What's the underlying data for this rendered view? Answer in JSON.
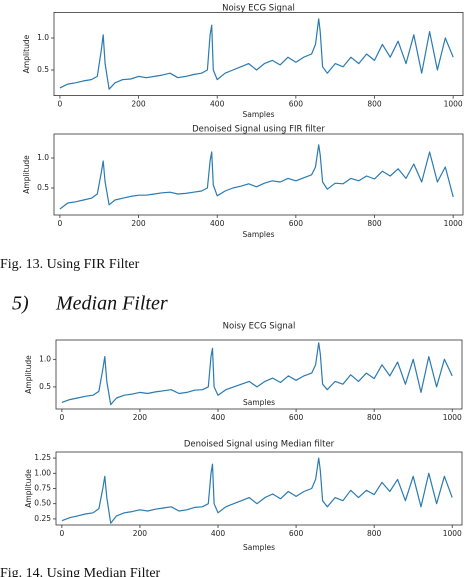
{
  "chart_data": [
    {
      "type": "line",
      "title": "Noisy ECG Signal",
      "xlabel": "Samples",
      "ylabel": "Amplitude",
      "color": "#2b7bb0",
      "x": [
        0,
        20,
        40,
        60,
        80,
        95,
        105,
        110,
        115,
        125,
        140,
        160,
        180,
        200,
        220,
        240,
        260,
        280,
        300,
        320,
        340,
        360,
        375,
        382,
        386,
        390,
        400,
        420,
        440,
        460,
        480,
        500,
        520,
        540,
        560,
        580,
        600,
        620,
        640,
        650,
        658,
        662,
        668,
        680,
        700,
        720,
        740,
        760,
        780,
        800,
        820,
        840,
        860,
        880,
        900,
        920,
        940,
        960,
        980,
        1000
      ],
      "values": [
        0.22,
        0.28,
        0.3,
        0.33,
        0.35,
        0.4,
        0.8,
        1.05,
        0.6,
        0.2,
        0.3,
        0.35,
        0.36,
        0.4,
        0.38,
        0.4,
        0.42,
        0.45,
        0.38,
        0.4,
        0.43,
        0.45,
        0.5,
        1.05,
        1.2,
        0.5,
        0.35,
        0.45,
        0.5,
        0.55,
        0.6,
        0.5,
        0.6,
        0.65,
        0.58,
        0.7,
        0.62,
        0.7,
        0.75,
        0.9,
        1.3,
        1.1,
        0.55,
        0.45,
        0.6,
        0.55,
        0.7,
        0.6,
        0.75,
        0.65,
        0.9,
        0.7,
        0.95,
        0.6,
        1.05,
        0.45,
        1.1,
        0.5,
        1.0,
        0.7
      ],
      "xlim": [
        -15,
        1025
      ],
      "ylim": [
        0.1,
        1.4
      ],
      "xticks": [
        0,
        200,
        400,
        600,
        800,
        1000
      ],
      "yticks": [
        0.5,
        {
          "value": 1,
          "label": "1.0"
        }
      ]
    },
    {
      "type": "line",
      "title": "Denoised Signal using FIR filter",
      "xlabel": "Samples",
      "ylabel": "Amplitude",
      "color": "#2b7bb0",
      "x": [
        0,
        20,
        40,
        60,
        80,
        95,
        105,
        110,
        115,
        125,
        140,
        160,
        180,
        200,
        220,
        240,
        260,
        280,
        300,
        320,
        340,
        360,
        375,
        382,
        386,
        390,
        400,
        420,
        440,
        460,
        480,
        500,
        520,
        540,
        560,
        580,
        600,
        620,
        640,
        650,
        658,
        662,
        668,
        680,
        700,
        720,
        740,
        760,
        780,
        800,
        820,
        840,
        860,
        880,
        900,
        920,
        940,
        960,
        980,
        1000
      ],
      "values": [
        0.15,
        0.25,
        0.27,
        0.3,
        0.33,
        0.4,
        0.75,
        0.95,
        0.6,
        0.22,
        0.3,
        0.33,
        0.36,
        0.38,
        0.38,
        0.4,
        0.42,
        0.43,
        0.4,
        0.41,
        0.43,
        0.45,
        0.5,
        0.95,
        1.1,
        0.55,
        0.37,
        0.45,
        0.5,
        0.53,
        0.57,
        0.52,
        0.58,
        0.62,
        0.6,
        0.66,
        0.62,
        0.67,
        0.72,
        0.85,
        1.22,
        1.05,
        0.6,
        0.48,
        0.58,
        0.57,
        0.66,
        0.62,
        0.7,
        0.65,
        0.78,
        0.7,
        0.82,
        0.66,
        0.9,
        0.6,
        1.1,
        0.6,
        0.85,
        0.35
      ],
      "xlim": [
        -15,
        1025
      ],
      "ylim": [
        0.05,
        1.4
      ],
      "xticks": [
        0,
        200,
        400,
        600,
        800,
        1000
      ],
      "yticks": [
        0.5,
        {
          "value": 1,
          "label": "1.0"
        }
      ]
    },
    {
      "type": "line",
      "title": "Noisy ECG Signal",
      "xlabel": "Samples",
      "ylabel": "Amplitude",
      "color": "#2b7bb0",
      "x": [
        0,
        20,
        40,
        60,
        80,
        95,
        105,
        110,
        115,
        125,
        140,
        160,
        180,
        200,
        220,
        240,
        260,
        280,
        300,
        320,
        340,
        360,
        375,
        382,
        386,
        390,
        400,
        420,
        440,
        460,
        480,
        500,
        520,
        540,
        560,
        580,
        600,
        620,
        640,
        650,
        658,
        662,
        668,
        680,
        700,
        720,
        740,
        760,
        780,
        800,
        820,
        840,
        860,
        880,
        900,
        920,
        940,
        960,
        980,
        1000
      ],
      "values": [
        0.22,
        0.27,
        0.3,
        0.33,
        0.35,
        0.42,
        0.82,
        1.05,
        0.6,
        0.18,
        0.3,
        0.35,
        0.37,
        0.4,
        0.38,
        0.41,
        0.43,
        0.45,
        0.38,
        0.4,
        0.44,
        0.45,
        0.5,
        1.05,
        1.2,
        0.5,
        0.35,
        0.45,
        0.5,
        0.55,
        0.6,
        0.5,
        0.6,
        0.66,
        0.58,
        0.7,
        0.62,
        0.7,
        0.75,
        0.9,
        1.3,
        1.1,
        0.55,
        0.45,
        0.6,
        0.55,
        0.72,
        0.6,
        0.75,
        0.65,
        0.9,
        0.7,
        0.95,
        0.55,
        1.0,
        0.4,
        1.05,
        0.5,
        1.0,
        0.7
      ],
      "xlim": [
        -15,
        1025
      ],
      "ylim": [
        0.1,
        1.35
      ],
      "xticks": [
        0,
        200,
        400,
        600,
        800,
        1000
      ],
      "yticks": [
        0.5,
        {
          "value": 1,
          "label": "1.0"
        }
      ]
    },
    {
      "type": "line",
      "title": "Denoised Signal using Median filter",
      "xlabel": "Samples",
      "ylabel": "Amplitude",
      "color": "#2b7bb0",
      "x": [
        0,
        20,
        40,
        60,
        80,
        95,
        105,
        110,
        115,
        125,
        140,
        160,
        180,
        200,
        220,
        240,
        260,
        280,
        300,
        320,
        340,
        360,
        375,
        382,
        386,
        390,
        400,
        420,
        440,
        460,
        480,
        500,
        520,
        540,
        560,
        580,
        600,
        620,
        640,
        650,
        658,
        662,
        668,
        680,
        700,
        720,
        740,
        760,
        780,
        800,
        820,
        840,
        860,
        880,
        900,
        920,
        940,
        960,
        980,
        1000
      ],
      "values": [
        0.22,
        0.27,
        0.3,
        0.33,
        0.35,
        0.42,
        0.75,
        0.95,
        0.6,
        0.18,
        0.3,
        0.35,
        0.37,
        0.4,
        0.38,
        0.41,
        0.43,
        0.45,
        0.38,
        0.4,
        0.44,
        0.45,
        0.5,
        1.0,
        1.15,
        0.5,
        0.35,
        0.45,
        0.5,
        0.55,
        0.6,
        0.5,
        0.6,
        0.66,
        0.58,
        0.7,
        0.62,
        0.7,
        0.75,
        0.9,
        1.25,
        1.05,
        0.55,
        0.45,
        0.6,
        0.55,
        0.72,
        0.6,
        0.72,
        0.65,
        0.85,
        0.7,
        0.9,
        0.55,
        0.95,
        0.45,
        1.0,
        0.5,
        0.95,
        0.6
      ],
      "xlim": [
        -15,
        1025
      ],
      "ylim": [
        0.15,
        1.35
      ],
      "xticks": [
        0,
        200,
        400,
        600,
        800,
        1000
      ],
      "yticks": [
        0.25,
        {
          "value": 0.5,
          "label": "0.50"
        },
        0.75,
        {
          "value": 1,
          "label": "1.00"
        },
        1.25
      ]
    }
  ],
  "figure_13_caption": "Fig. 13. Using FIR Filter",
  "section_number": "5)",
  "section_title": "Median Filter",
  "figure_14_caption": "Fig. 14. Using Median Filter"
}
